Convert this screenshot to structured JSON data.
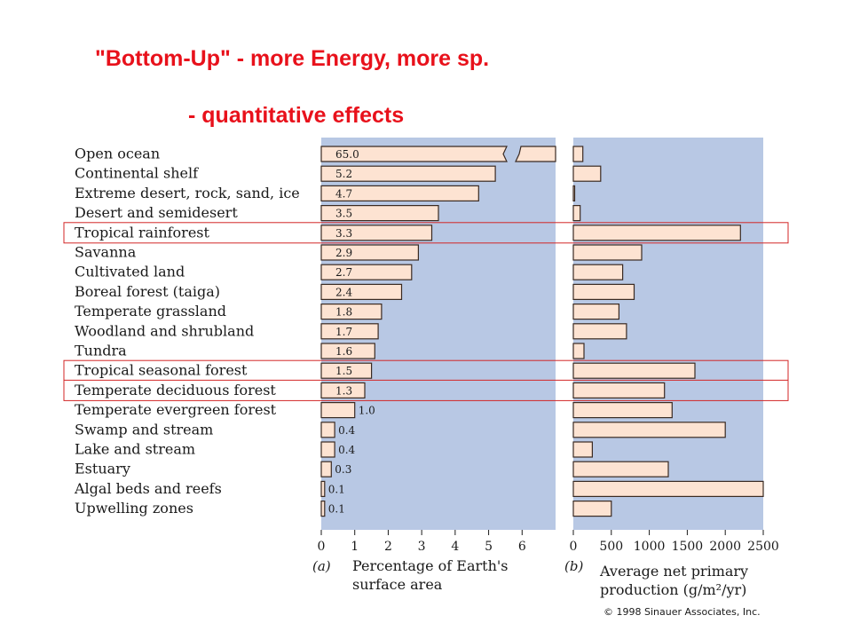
{
  "headline": {
    "line1": "\"Bottom-Up\" - more Energy, more sp.",
    "line2": "- quantitative effects"
  },
  "colors": {
    "headline": "#e8111b",
    "panel": "#b8c8e4",
    "bar_fill": "#fde3d2",
    "bar_stroke": "#3a2a22",
    "highlight_box": "#d32626"
  },
  "highlighted_rows": [
    "Tropical rainforest",
    "Tropical seasonal forest",
    "Temperate deciduous forest"
  ],
  "copyright": "© 1998 Sinauer Associates, Inc.",
  "chart_data": [
    {
      "type": "bar",
      "orientation": "horizontal",
      "panel_label": "(a)",
      "xlabel": [
        "Percentage of Earth's",
        "surface area"
      ],
      "xlim": [
        0,
        7
      ],
      "xticks": [
        0,
        1,
        2,
        3,
        4,
        5,
        6
      ],
      "axis_break": "Open ocean bar is broken beyond 6",
      "categories": [
        "Open ocean",
        "Continental shelf",
        "Extreme desert, rock, sand, ice",
        "Desert and semidesert",
        "Tropical rainforest",
        "Savanna",
        "Cultivated land",
        "Boreal forest (taiga)",
        "Temperate grassland",
        "Woodland and shrubland",
        "Tundra",
        "Tropical seasonal forest",
        "Temperate deciduous forest",
        "Temperate evergreen forest",
        "Swamp and stream",
        "Lake and stream",
        "Estuary",
        "Algal beds and reefs",
        "Upwelling zones"
      ],
      "values": [
        65.0,
        5.2,
        4.7,
        3.5,
        3.3,
        2.9,
        2.7,
        2.4,
        1.8,
        1.7,
        1.6,
        1.5,
        1.3,
        1.0,
        0.4,
        0.4,
        0.3,
        0.1,
        0.1
      ],
      "value_labels": [
        "65.0",
        "5.2",
        "4.7",
        "3.5",
        "3.3",
        "2.9",
        "2.7",
        "2.4",
        "1.8",
        "1.7",
        "1.6",
        "1.5",
        "1.3",
        "1.0",
        "0.4",
        "0.4",
        "0.3",
        "0.1",
        "0.1"
      ],
      "grid": false
    },
    {
      "type": "bar",
      "orientation": "horizontal",
      "panel_label": "(b)",
      "xlabel": [
        "Average net primary",
        "production (g/m²/yr)"
      ],
      "xlim": [
        0,
        2500
      ],
      "xticks": [
        0,
        500,
        1000,
        1500,
        2000,
        2500
      ],
      "values": [
        125,
        360,
        3,
        90,
        2200,
        900,
        650,
        800,
        600,
        700,
        140,
        1600,
        1200,
        1300,
        2000,
        250,
        1250,
        2500,
        500
      ],
      "grid": false
    }
  ]
}
